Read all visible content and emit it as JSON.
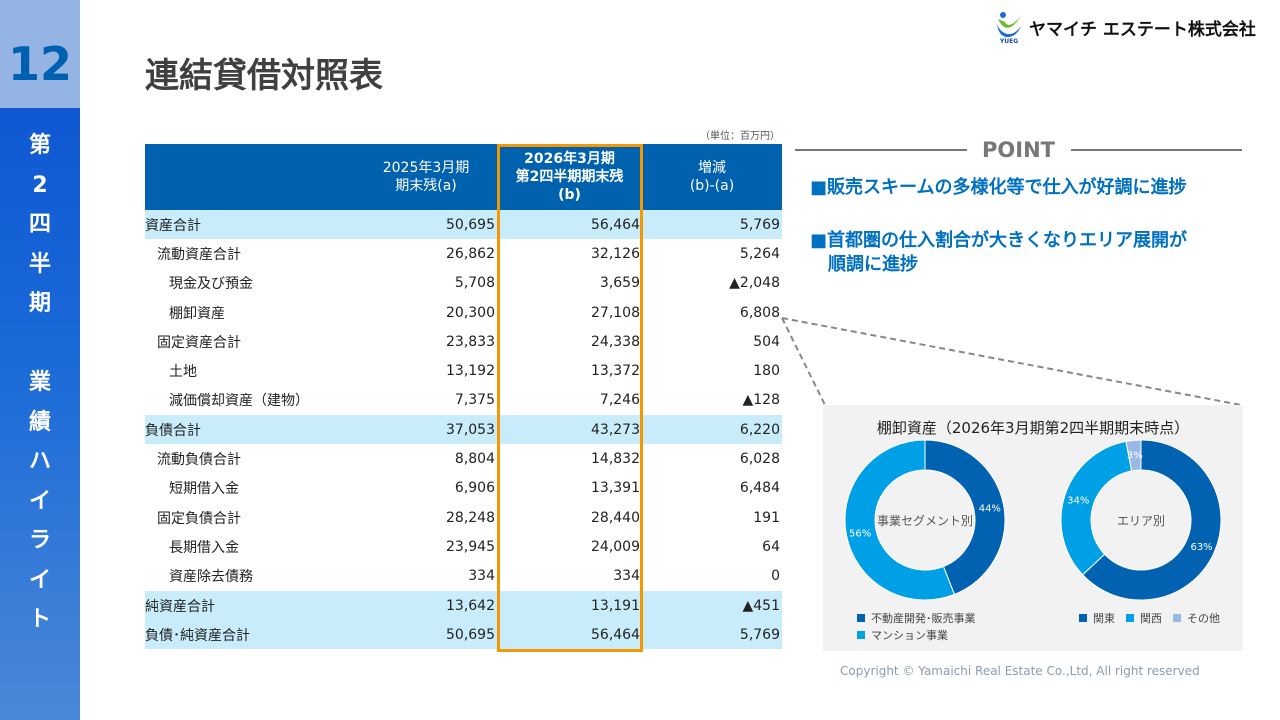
{
  "sidebar": {
    "page_number": "12",
    "section": [
      "第",
      "2",
      "四",
      "半",
      "期",
      "",
      "業",
      "績",
      "ハ",
      "イ",
      "ラ",
      "イ",
      "ト"
    ]
  },
  "logo": {
    "company": "ヤマイチ エステート株式会社",
    "mark_text": "YUEG"
  },
  "title": "連結貸借対照表",
  "unit": "（単位：百万円）",
  "table": {
    "headers": [
      {
        "l1": "",
        "l2": "",
        "l3": ""
      },
      {
        "l1": "2025年3月期",
        "l2": "期末残(a)",
        "l3": ""
      },
      {
        "l1": "2026年3月期",
        "l2": "第2四半期期末残",
        "l3": "(b)"
      },
      {
        "l1": "増減",
        "l2": "(b)-(a)",
        "l3": ""
      }
    ],
    "rows": [
      {
        "label": "資産合計",
        "indent": 0,
        "highlight": true,
        "a": "50,695",
        "b": "56,464",
        "diff": "5,769"
      },
      {
        "label": "流動資産合計",
        "indent": 1,
        "highlight": false,
        "a": "26,862",
        "b": "32,126",
        "diff": "5,264"
      },
      {
        "label": "現金及び預金",
        "indent": 2,
        "highlight": false,
        "a": "5,708",
        "b": "3,659",
        "diff": "▲2,048"
      },
      {
        "label": "棚卸資産",
        "indent": 2,
        "highlight": false,
        "a": "20,300",
        "b": "27,108",
        "diff": "6,808"
      },
      {
        "label": "固定資産合計",
        "indent": 1,
        "highlight": false,
        "a": "23,833",
        "b": "24,338",
        "diff": "504"
      },
      {
        "label": "土地",
        "indent": 2,
        "highlight": false,
        "a": "13,192",
        "b": "13,372",
        "diff": "180"
      },
      {
        "label": "減価償却資産（建物）",
        "indent": 2,
        "highlight": false,
        "a": "7,375",
        "b": "7,246",
        "diff": "▲128"
      },
      {
        "label": "負債合計",
        "indent": 0,
        "highlight": true,
        "a": "37,053",
        "b": "43,273",
        "diff": "6,220"
      },
      {
        "label": "流動負債合計",
        "indent": 1,
        "highlight": false,
        "a": "8,804",
        "b": "14,832",
        "diff": "6,028"
      },
      {
        "label": "短期借入金",
        "indent": 2,
        "highlight": false,
        "a": "6,906",
        "b": "13,391",
        "diff": "6,484"
      },
      {
        "label": "固定負債合計",
        "indent": 1,
        "highlight": false,
        "a": "28,248",
        "b": "28,440",
        "diff": "191"
      },
      {
        "label": "長期借入金",
        "indent": 2,
        "highlight": false,
        "a": "23,945",
        "b": "24,009",
        "diff": "64"
      },
      {
        "label": "資産除去債務",
        "indent": 2,
        "highlight": false,
        "a": "334",
        "b": "334",
        "diff": "0"
      },
      {
        "label": "純資産合計",
        "indent": 0,
        "highlight": true,
        "a": "13,642",
        "b": "13,191",
        "diff": "▲451"
      },
      {
        "label": "負債･純資産合計",
        "indent": 0,
        "highlight": true,
        "a": "50,695",
        "b": "56,464",
        "diff": "5,769"
      }
    ]
  },
  "point": {
    "heading": "POINT",
    "items": [
      "■販売スキームの多様化等で仕入が好調に進捗",
      "■首都圏の仕入割合が大きくなりエリア展開が",
      "　順調に進捗"
    ]
  },
  "chart_data": [
    {
      "type": "pie",
      "donut": true,
      "title": "棚卸資産（2026年3月期第2四半期期末時点）",
      "center_label": "事業セグメント別",
      "categories": [
        "不動産開発･販売事業",
        "マンション事業"
      ],
      "values": [
        44,
        56
      ],
      "labels": [
        "44%",
        "56%"
      ],
      "colors": [
        "#0062b0",
        "#00a0e6"
      ],
      "legend": "bottom-left"
    },
    {
      "type": "pie",
      "donut": true,
      "center_label": "エリア別",
      "categories": [
        "関東",
        "関西",
        "その他"
      ],
      "values": [
        63,
        34,
        3
      ],
      "labels": [
        "63%",
        "34%",
        "3%"
      ],
      "colors": [
        "#0062b0",
        "#00a0e6",
        "#9ab8e6"
      ],
      "legend": "bottom"
    }
  ],
  "copyright": "Copyright © Yamaichi Real Estate Co.,Ltd, All right reserved"
}
